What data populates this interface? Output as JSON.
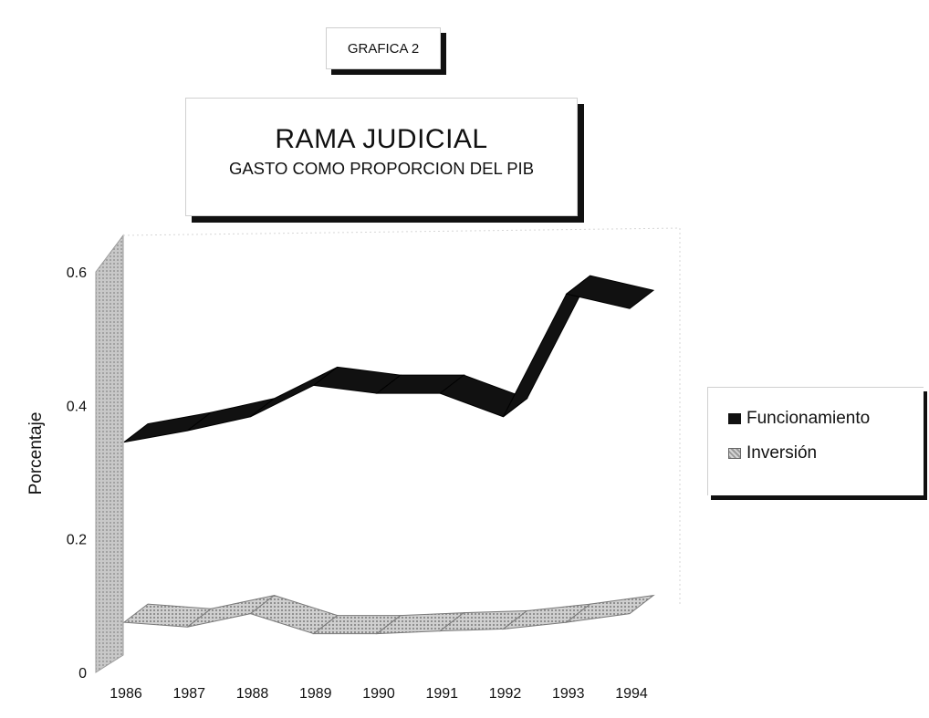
{
  "header": {
    "tag": "GRAFICA 2",
    "title": "RAMA JUDICIAL",
    "subtitle": "GASTO COMO PROPORCION DEL PIB"
  },
  "chart_data": {
    "type": "line",
    "style": "3d-ribbon",
    "title": "RAMA JUDICIAL",
    "subtitle": "GASTO COMO PROPORCION DEL PIB",
    "xlabel": "",
    "ylabel": "Porcentaje",
    "ylim": [
      0,
      0.6
    ],
    "yticks": [
      "0",
      "0.2",
      "0.4",
      "0.6"
    ],
    "ytick_values": [
      0,
      0.2,
      0.4,
      0.6
    ],
    "categories": [
      "1986",
      "1987",
      "1988",
      "1989",
      "1990",
      "1991",
      "1992",
      "1993",
      "1994"
    ],
    "series": [
      {
        "name": "Funcionamiento",
        "color": "#111111",
        "values": [
          0.345,
          0.362,
          0.383,
          0.43,
          0.418,
          0.418,
          0.383,
          0.567,
          0.545
        ]
      },
      {
        "name": "Inversión",
        "color": "#aaaaaa",
        "values": [
          0.075,
          0.068,
          0.088,
          0.058,
          0.058,
          0.062,
          0.065,
          0.075,
          0.088
        ]
      }
    ],
    "legend_position": "right",
    "grid": false
  }
}
